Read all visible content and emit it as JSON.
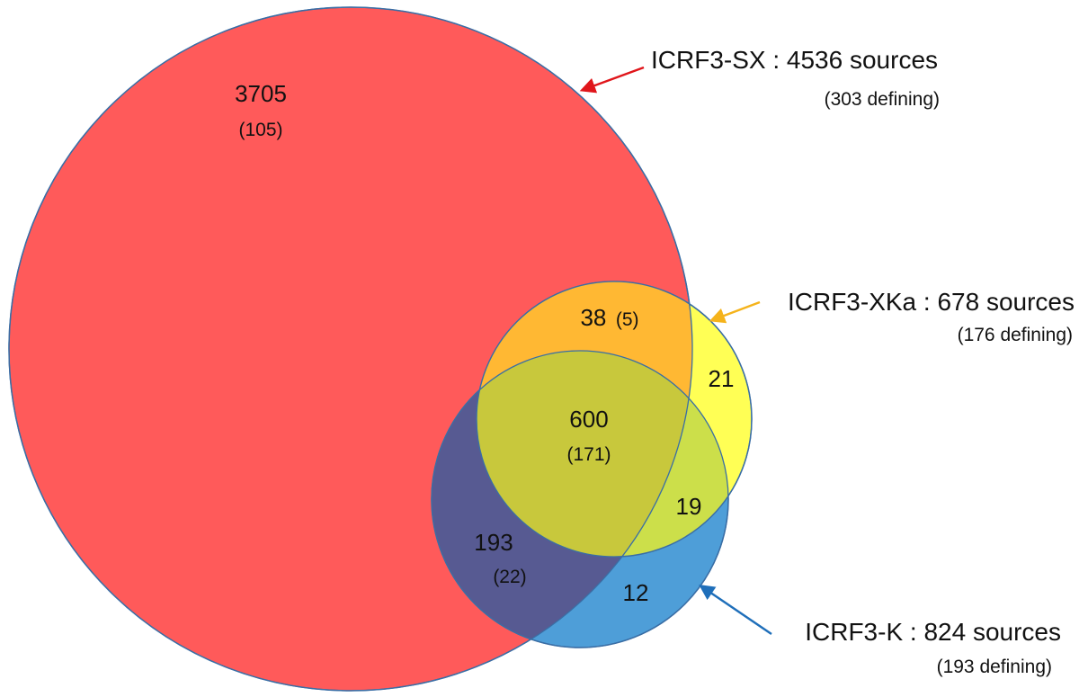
{
  "sets": [
    {
      "id": "sx",
      "title": "ICRF3-SX : 4536 sources",
      "subtitle": "(303 defining)",
      "color": "#ff5a5a",
      "arrow_color": "#e0161b"
    },
    {
      "id": "xka",
      "title": "ICRF3-XKa : 678 sources",
      "subtitle": "(176 defining)",
      "color": "#ffff4d",
      "arrow_color": "#f5b31b"
    },
    {
      "id": "k",
      "title": "ICRF3-K : 824 sources",
      "subtitle": "(193 defining)",
      "color": "#3b8fd6",
      "arrow_color": "#1f6fba"
    }
  ],
  "regions": {
    "sx_only": {
      "count": "3705",
      "defining": "(105)"
    },
    "sx_xka": {
      "count": "38",
      "defining": "(5)"
    },
    "xka_only": {
      "count": "21"
    },
    "all_three": {
      "count": "600",
      "defining": "(171)"
    },
    "xka_k": {
      "count": "19"
    },
    "sx_k": {
      "count": "193",
      "defining": "(22)"
    },
    "k_only": {
      "count": "12"
    }
  }
}
